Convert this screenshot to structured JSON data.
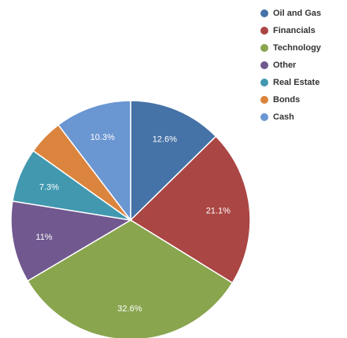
{
  "chart_data": {
    "type": "pie",
    "title": "",
    "legend_position": "top-right",
    "start_angle_deg": 0,
    "direction": "clockwise",
    "slices": [
      {
        "name": "Oil and Gas",
        "value": 12.6,
        "label": "12.6%",
        "color": "#4572a7"
      },
      {
        "name": "Financials",
        "value": 21.1,
        "label": "21.1%",
        "color": "#aa4643"
      },
      {
        "name": "Technology",
        "value": 32.6,
        "label": "32.6%",
        "color": "#89a54e"
      },
      {
        "name": "Other",
        "value": 11.0,
        "label": "11%",
        "color": "#71588f"
      },
      {
        "name": "Real Estate",
        "value": 7.3,
        "label": "7.3%",
        "color": "#4198af"
      },
      {
        "name": "Bonds",
        "value": 4.8,
        "label": "",
        "color": "#db843d"
      },
      {
        "name": "Cash",
        "value": 10.3,
        "label": "10.3%",
        "color": "#6a96d2"
      }
    ]
  }
}
